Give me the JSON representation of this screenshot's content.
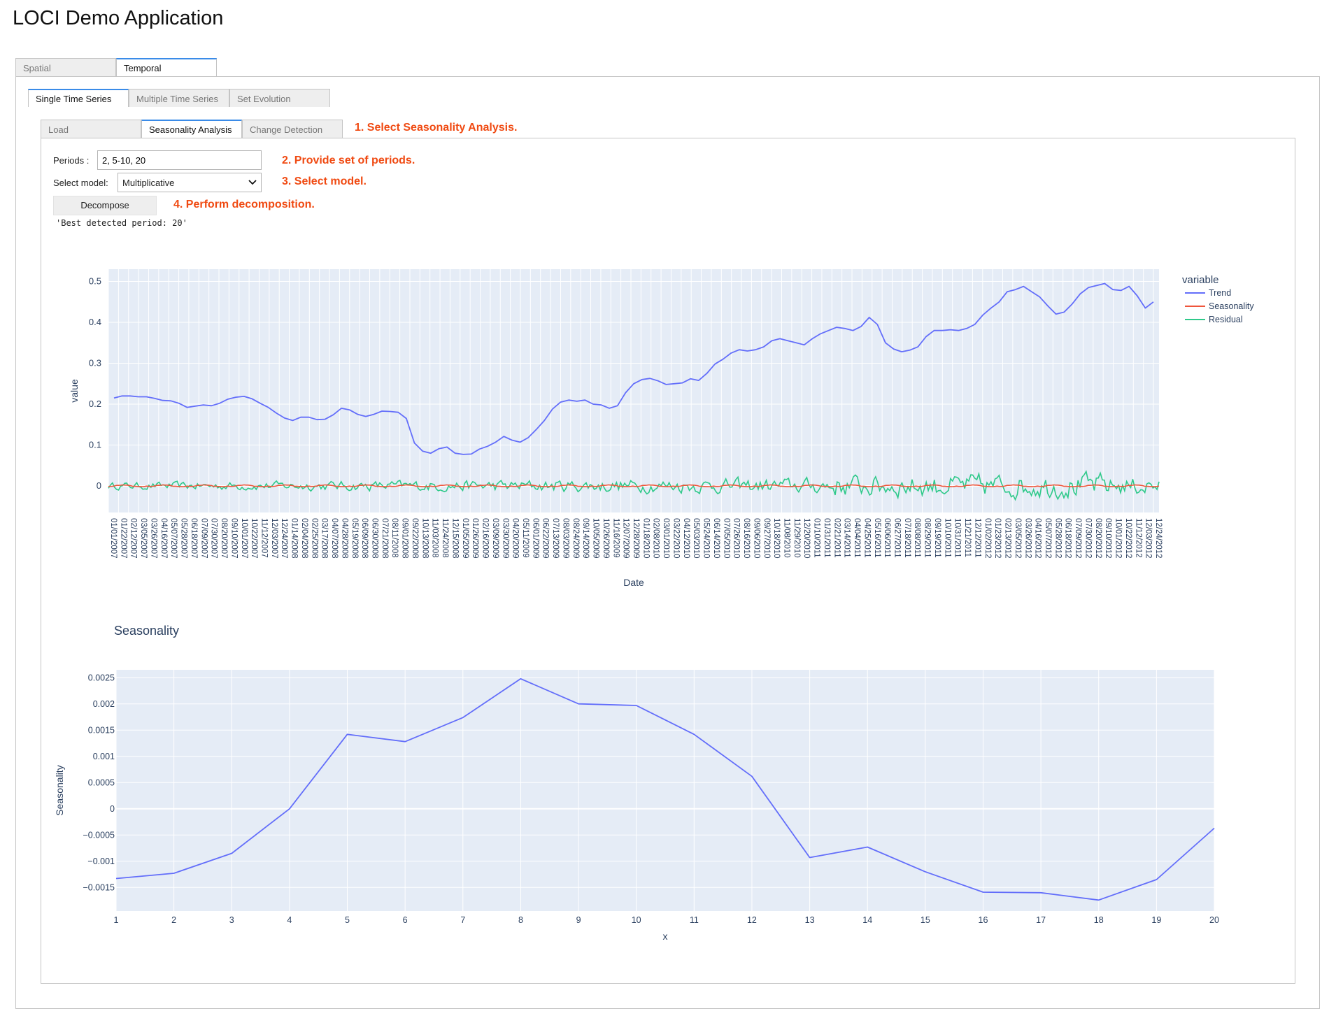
{
  "app": {
    "title": "LOCI Demo Application"
  },
  "top_tabs": [
    {
      "label": "Spatial",
      "active": false
    },
    {
      "label": "Temporal",
      "active": true
    }
  ],
  "sub_tabs": [
    {
      "label": "Single Time Series",
      "active": true
    },
    {
      "label": "Multiple Time Series",
      "active": false
    },
    {
      "label": "Set Evolution",
      "active": false
    }
  ],
  "inner_tabs": [
    {
      "label": "Load",
      "active": false
    },
    {
      "label": "Seasonality Analysis",
      "active": true
    },
    {
      "label": "Change Detection",
      "active": false
    }
  ],
  "annotations": {
    "step1": "1. Select Seasonality Analysis.",
    "step2": "2. Provide set of periods.",
    "step3": "3. Select model.",
    "step4": "4. Perform decomposition."
  },
  "form": {
    "periods_label": "Periods :",
    "periods_value": "2, 5-10, 20",
    "model_label": "Select model:",
    "model_value": "Multiplicative",
    "decompose_label": "Decompose",
    "output": "'Best detected period: 20'"
  },
  "colors": {
    "trend": "#636efa",
    "seasonality": "#ef553b",
    "residual": "#2fc98a",
    "plot_bg": "#e5ecf6",
    "accent": "#3a8be8",
    "note": "#f04a12"
  },
  "chart_data": [
    {
      "type": "line",
      "xlabel": "Date",
      "ylabel": "value",
      "yticks": [
        0,
        0.1,
        0.2,
        0.3,
        0.4,
        0.5
      ],
      "ylim": [
        -0.065,
        0.53
      ],
      "legend_title": "variable",
      "legend_position": "right",
      "xtick_labels": [
        "01/01/2007",
        "01/22/2007",
        "02/12/2007",
        "03/05/2007",
        "03/26/2007",
        "04/16/2007",
        "05/07/2007",
        "05/28/2007",
        "06/18/2007",
        "07/09/2007",
        "07/30/2007",
        "08/20/2007",
        "09/10/2007",
        "10/01/2007",
        "10/22/2007",
        "11/12/2007",
        "12/03/2007",
        "12/24/2007",
        "01/14/2008",
        "02/04/2008",
        "02/25/2008",
        "03/17/2008",
        "04/07/2008",
        "04/28/2008",
        "05/19/2008",
        "06/09/2008",
        "06/30/2008",
        "07/21/2008",
        "08/11/2008",
        "09/01/2008",
        "09/22/2008",
        "10/13/2008",
        "11/03/2008",
        "11/24/2008",
        "12/15/2008",
        "01/05/2009",
        "01/26/2009",
        "02/16/2009",
        "03/09/2009",
        "03/30/2009",
        "04/20/2009",
        "05/11/2009",
        "06/01/2009",
        "06/22/2009",
        "07/13/2009",
        "08/03/2009",
        "08/24/2009",
        "09/14/2009",
        "10/05/2009",
        "10/26/2009",
        "11/16/2009",
        "12/07/2009",
        "12/28/2009",
        "01/18/2010",
        "02/08/2010",
        "03/01/2010",
        "03/22/2010",
        "04/12/2010",
        "05/03/2010",
        "05/24/2010",
        "06/14/2010",
        "07/05/2010",
        "07/26/2010",
        "08/16/2010",
        "09/06/2010",
        "09/27/2010",
        "10/18/2010",
        "11/08/2010",
        "11/29/2010",
        "12/20/2010",
        "01/10/2011",
        "01/31/2011",
        "02/21/2011",
        "03/14/2011",
        "04/04/2011",
        "04/25/2011",
        "05/16/2011",
        "06/06/2011",
        "06/27/2011",
        "07/18/2011",
        "08/08/2011",
        "08/29/2011",
        "09/19/2011",
        "10/10/2011",
        "10/31/2011",
        "11/21/2011",
        "12/12/2011",
        "01/02/2012",
        "01/23/2012",
        "02/13/2012",
        "03/05/2012",
        "03/26/2012",
        "04/16/2012",
        "05/07/2012",
        "05/28/2012",
        "06/18/2012",
        "07/09/2012",
        "07/30/2012",
        "08/20/2012",
        "09/10/2012",
        "10/01/2012",
        "10/22/2012",
        "11/12/2012",
        "12/03/2012",
        "12/24/2012"
      ],
      "series": [
        {
          "name": "Trend",
          "values": [
            0.215,
            0.22,
            0.22,
            0.218,
            0.218,
            0.214,
            0.209,
            0.208,
            0.202,
            0.192,
            0.195,
            0.198,
            0.196,
            0.202,
            0.212,
            0.217,
            0.219,
            0.213,
            0.202,
            0.192,
            0.178,
            0.166,
            0.16,
            0.168,
            0.168,
            0.162,
            0.163,
            0.174,
            0.19,
            0.186,
            0.175,
            0.17,
            0.175,
            0.183,
            0.182,
            0.18,
            0.165,
            0.105,
            0.085,
            0.08,
            0.091,
            0.095,
            0.08,
            0.077,
            0.078,
            0.09,
            0.097,
            0.107,
            0.121,
            0.112,
            0.107,
            0.118,
            0.138,
            0.16,
            0.188,
            0.205,
            0.21,
            0.207,
            0.21,
            0.2,
            0.198,
            0.19,
            0.196,
            0.228,
            0.25,
            0.26,
            0.263,
            0.257,
            0.248,
            0.25,
            0.252,
            0.262,
            0.258,
            0.275,
            0.298,
            0.31,
            0.325,
            0.333,
            0.33,
            0.333,
            0.34,
            0.355,
            0.36,
            0.355,
            0.35,
            0.345,
            0.36,
            0.372,
            0.38,
            0.388,
            0.385,
            0.38,
            0.39,
            0.412,
            0.395,
            0.35,
            0.335,
            0.328,
            0.332,
            0.34,
            0.365,
            0.38,
            0.38,
            0.382,
            0.38,
            0.385,
            0.395,
            0.418,
            0.435,
            0.45,
            0.475,
            0.48,
            0.488,
            0.475,
            0.462,
            0.44,
            0.42,
            0.425,
            0.445,
            0.47,
            0.485,
            0.49,
            0.495,
            0.48,
            0.478,
            0.488,
            0.465,
            0.435,
            0.45
          ]
        },
        {
          "name": "Seasonality",
          "values": [
            -0.0013,
            -0.0012,
            -0.0009,
            0.0,
            0.0014,
            0.0013,
            0.0017,
            0.0025,
            0.002,
            0.002,
            0.0014,
            0.0006,
            -0.0009,
            -0.0007,
            -0.0012,
            -0.0016,
            -0.0016,
            -0.0017,
            -0.0013,
            -0.0004
          ]
        },
        {
          "name": "Residual",
          "values": []
        }
      ]
    },
    {
      "type": "line",
      "title": "Seasonality",
      "xlabel": "x",
      "ylabel": "Seasonality",
      "x": [
        1,
        2,
        3,
        4,
        5,
        6,
        7,
        8,
        9,
        10,
        11,
        12,
        13,
        14,
        15,
        16,
        17,
        18,
        19,
        20
      ],
      "xlim": [
        1,
        20
      ],
      "ylim": [
        -0.00195,
        0.00265
      ],
      "yticks": [
        0.0025,
        0.002,
        0.0015,
        0.001,
        0.0005,
        0,
        -0.0005,
        -0.001,
        -0.0015
      ],
      "ytick_labels": [
        "0.0025",
        "0.002",
        "0.0015",
        "0.001",
        "0.0005",
        "0",
        "−0.0005",
        "−0.001",
        "−0.0015"
      ],
      "series": [
        {
          "name": "",
          "values": [
            -0.00133,
            -0.00123,
            -0.00085,
            0.0,
            0.00142,
            0.00128,
            0.00174,
            0.00248,
            0.002,
            0.00197,
            0.00142,
            0.00062,
            -0.00093,
            -0.00073,
            -0.0012,
            -0.00159,
            -0.0016,
            -0.00174,
            -0.00135,
            -0.00037
          ]
        }
      ]
    }
  ]
}
